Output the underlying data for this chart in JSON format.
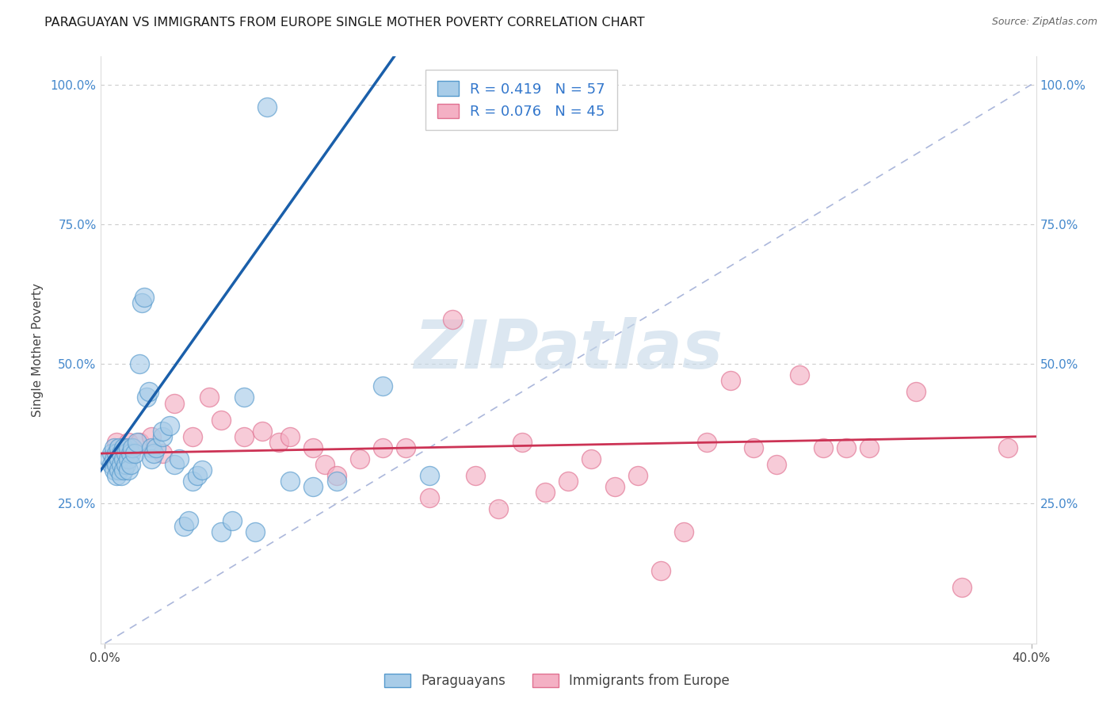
{
  "title": "PARAGUAYAN VS IMMIGRANTS FROM EUROPE SINGLE MOTHER POVERTY CORRELATION CHART",
  "source": "Source: ZipAtlas.com",
  "ylabel": "Single Mother Poverty",
  "blue_R": 0.419,
  "blue_N": 57,
  "pink_R": 0.076,
  "pink_N": 45,
  "blue_fill": "#a8cce8",
  "blue_edge": "#5599cc",
  "pink_fill": "#f4b0c4",
  "pink_edge": "#e07090",
  "blue_line_color": "#1a5faa",
  "pink_line_color": "#cc3355",
  "diag_color": "#8899cc",
  "grid_color": "#cccccc",
  "watermark": "ZIPatlas",
  "watermark_color": "#c5d8e8",
  "xlim": [
    -0.002,
    0.402
  ],
  "ylim": [
    0.0,
    1.05
  ],
  "tick_color": "#4488cc",
  "title_color": "#1a1a1a",
  "source_color": "#666666",
  "legend_text_color": "#3377cc",
  "blue_x": [
    0.002,
    0.003,
    0.003,
    0.004,
    0.004,
    0.004,
    0.005,
    0.005,
    0.005,
    0.006,
    0.006,
    0.006,
    0.007,
    0.007,
    0.007,
    0.008,
    0.008,
    0.008,
    0.009,
    0.009,
    0.01,
    0.01,
    0.01,
    0.011,
    0.011,
    0.012,
    0.013,
    0.014,
    0.015,
    0.016,
    0.017,
    0.018,
    0.019,
    0.02,
    0.02,
    0.021,
    0.022,
    0.025,
    0.025,
    0.028,
    0.03,
    0.032,
    0.034,
    0.036,
    0.038,
    0.04,
    0.042,
    0.05,
    0.055,
    0.06,
    0.065,
    0.07,
    0.08,
    0.09,
    0.1,
    0.12,
    0.14
  ],
  "blue_y": [
    0.33,
    0.34,
    0.32,
    0.35,
    0.33,
    0.31,
    0.34,
    0.32,
    0.3,
    0.35,
    0.33,
    0.31,
    0.34,
    0.32,
    0.3,
    0.35,
    0.33,
    0.31,
    0.34,
    0.32,
    0.35,
    0.33,
    0.31,
    0.34,
    0.32,
    0.35,
    0.34,
    0.36,
    0.5,
    0.61,
    0.62,
    0.44,
    0.45,
    0.35,
    0.33,
    0.34,
    0.35,
    0.37,
    0.38,
    0.39,
    0.32,
    0.33,
    0.21,
    0.22,
    0.29,
    0.3,
    0.31,
    0.2,
    0.22,
    0.44,
    0.2,
    0.96,
    0.29,
    0.28,
    0.29,
    0.46,
    0.3
  ],
  "pink_x": [
    0.005,
    0.007,
    0.009,
    0.01,
    0.012,
    0.015,
    0.02,
    0.025,
    0.03,
    0.038,
    0.045,
    0.05,
    0.06,
    0.068,
    0.075,
    0.08,
    0.09,
    0.095,
    0.1,
    0.11,
    0.12,
    0.13,
    0.14,
    0.15,
    0.16,
    0.17,
    0.18,
    0.19,
    0.2,
    0.21,
    0.22,
    0.23,
    0.24,
    0.25,
    0.26,
    0.27,
    0.28,
    0.29,
    0.3,
    0.31,
    0.32,
    0.33,
    0.35,
    0.37,
    0.39
  ],
  "pink_y": [
    0.36,
    0.34,
    0.35,
    0.36,
    0.35,
    0.36,
    0.37,
    0.34,
    0.43,
    0.37,
    0.44,
    0.4,
    0.37,
    0.38,
    0.36,
    0.37,
    0.35,
    0.32,
    0.3,
    0.33,
    0.35,
    0.35,
    0.26,
    0.58,
    0.3,
    0.24,
    0.36,
    0.27,
    0.29,
    0.33,
    0.28,
    0.3,
    0.13,
    0.2,
    0.36,
    0.47,
    0.35,
    0.32,
    0.48,
    0.35,
    0.35,
    0.35,
    0.45,
    0.1,
    0.35
  ],
  "blue_label": "Paraguayans",
  "pink_label": "Immigrants from Europe"
}
